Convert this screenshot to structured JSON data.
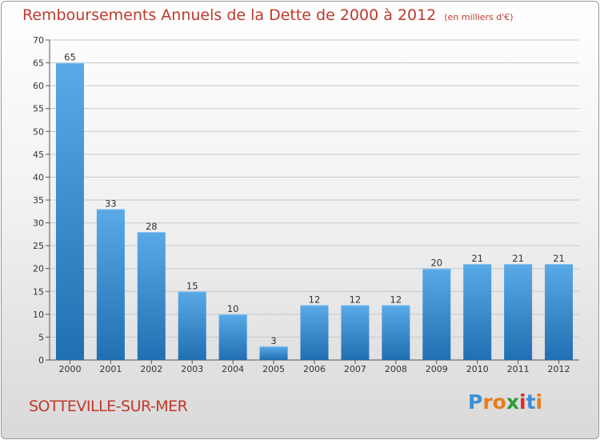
{
  "header": {
    "title": "Remboursements Annuels de la Dette de 2000 à 2012",
    "subtitle": "(en milliers d'€)"
  },
  "footer": {
    "commune": "SOTTEVILLE-SUR-MER",
    "logo_letters": [
      "P",
      "r",
      "o",
      "x",
      "i",
      "t",
      "i"
    ],
    "logo_colors": [
      "#3d8fd6",
      "#e87d1e",
      "#e87d1e",
      "#2f9a3c",
      "#d92b2b",
      "#3d8fd6",
      "#e87d1e"
    ]
  },
  "chart_data": {
    "type": "bar",
    "title": "Remboursements Annuels de la Dette de 2000 à 2012",
    "subtitle": "(en milliers d'€)",
    "categories": [
      "2000",
      "2001",
      "2002",
      "2003",
      "2004",
      "2005",
      "2006",
      "2007",
      "2008",
      "2009",
      "2010",
      "2011",
      "2012"
    ],
    "values": [
      65,
      33,
      28,
      15,
      10,
      3,
      12,
      12,
      12,
      20,
      21,
      21,
      21
    ],
    "ylim": [
      0,
      70
    ],
    "yticks": [
      0,
      5,
      10,
      15,
      20,
      25,
      30,
      35,
      40,
      45,
      50,
      55,
      60,
      65,
      70
    ],
    "grid": true,
    "colors": {
      "bar_light": "#5aaae8",
      "bar_dark": "#1f6fb2",
      "grid": "#c8c8c8"
    }
  }
}
